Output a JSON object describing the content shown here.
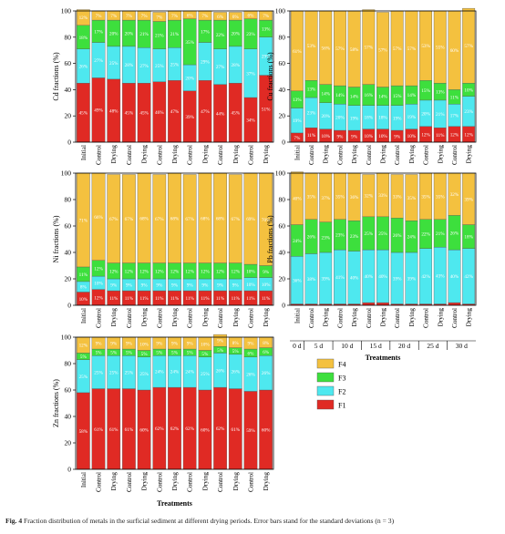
{
  "chart_data": [
    {
      "type": "bar",
      "stacked": true,
      "ylabel": "Cd fractions (%)",
      "ylim": [
        0,
        100
      ],
      "yticks": [
        0,
        20,
        40,
        60,
        80,
        100
      ],
      "categories": [
        "Initial",
        "Control",
        "Drying",
        "Control",
        "Drying",
        "Control",
        "Drying",
        "Control",
        "Drying",
        "Control",
        "Drying",
        "Control",
        "Drying"
      ],
      "series": [
        {
          "name": "F1",
          "values": [
            45,
            49,
            48,
            45,
            45,
            46,
            47,
            39,
            47,
            44,
            45,
            34,
            51
          ],
          "labels": [
            "45%",
            "49%",
            "48%",
            "45%",
            "45%",
            "46%",
            "47%",
            "39%",
            "47%",
            "44%",
            "45%",
            "34%",
            "51%"
          ]
        },
        {
          "name": "F2",
          "values": [
            26,
            27,
            25,
            28,
            27,
            25,
            25,
            20,
            29,
            27,
            28,
            37,
            29
          ],
          "labels": [
            "26%",
            "27%",
            "25%",
            "28%",
            "27%",
            "25%",
            "25%",
            "20%",
            "29%",
            "27%",
            "28%",
            "37%",
            "29%"
          ]
        },
        {
          "name": "F3",
          "values": [
            18,
            17,
            20,
            20,
            21,
            21,
            21,
            35,
            17,
            22,
            20,
            23,
            13
          ],
          "labels": [
            "18%",
            "17%",
            "20%",
            "20%",
            "21%",
            "21%",
            "21%",
            "35%",
            "17%",
            "22%",
            "20%",
            "23%",
            "13%"
          ]
        },
        {
          "name": "F4",
          "values": [
            12,
            7,
            7,
            7,
            7,
            7,
            7,
            6,
            7,
            6,
            6,
            6,
            7
          ],
          "labels": [
            "12%",
            "7%",
            "7%",
            "7%",
            "7%",
            "7%",
            "7%",
            "6%",
            "7%",
            "6%",
            "6%",
            "6%",
            "7%"
          ]
        }
      ]
    },
    {
      "type": "bar",
      "stacked": true,
      "ylabel": "Cu fractions (%)",
      "ylim": [
        0,
        100
      ],
      "yticks": [
        0,
        20,
        40,
        60,
        80,
        100
      ],
      "categories": [
        "Initial",
        "Control",
        "Drying",
        "Control",
        "Drying",
        "Control",
        "Drying",
        "Control",
        "Drying",
        "Control",
        "Drying",
        "Control",
        "Drying"
      ],
      "series": [
        {
          "name": "F1",
          "values": [
            7,
            11,
            10,
            9,
            9,
            10,
            10,
            9,
            10,
            12,
            11,
            12,
            12
          ],
          "labels": [
            "7%",
            "11%",
            "10%",
            "9%",
            "9%",
            "10%",
            "10%",
            "9%",
            "10%",
            "12%",
            "11%",
            "12%",
            "12%"
          ]
        },
        {
          "name": "F2",
          "values": [
            19,
            23,
            20,
            20,
            19,
            18,
            18,
            19,
            19,
            20,
            21,
            17,
            23
          ],
          "labels": [
            "19%",
            "23%",
            "20%",
            "20%",
            "19%",
            "18%",
            "18%",
            "19%",
            "19%",
            "20%",
            "21%",
            "17%",
            "23%"
          ]
        },
        {
          "name": "F3",
          "values": [
            13,
            13,
            14,
            14,
            14,
            16,
            14,
            15,
            14,
            15,
            13,
            11,
            10
          ],
          "labels": [
            "13%",
            "13%",
            "14%",
            "14%",
            "14%",
            "16%",
            "14%",
            "15%",
            "14%",
            "15%",
            "13%",
            "11%",
            "10%"
          ]
        },
        {
          "name": "F4",
          "values": [
            61,
            53,
            56,
            57,
            58,
            57,
            57,
            57,
            57,
            53,
            55,
            60,
            57
          ],
          "labels": [
            "61%",
            "53%",
            "56%",
            "57%",
            "58%",
            "57%",
            "57%",
            "57%",
            "57%",
            "53%",
            "55%",
            "60%",
            "57%"
          ]
        }
      ]
    },
    {
      "type": "bar",
      "stacked": true,
      "ylabel": "Ni fractions (%)",
      "ylim": [
        0,
        100
      ],
      "yticks": [
        0,
        20,
        40,
        60,
        80,
        100
      ],
      "categories": [
        "Initial",
        "Control",
        "Drying",
        "Control",
        "Drying",
        "Control",
        "Drying",
        "Control",
        "Drying",
        "Control",
        "Drying",
        "Control",
        "Drying"
      ],
      "series": [
        {
          "name": "F1",
          "values": [
            10,
            12,
            11,
            11,
            11,
            11,
            11,
            11,
            11,
            11,
            11,
            11,
            11
          ],
          "labels": [
            "10%",
            "12%",
            "11%",
            "11%",
            "11%",
            "11%",
            "11%",
            "11%",
            "11%",
            "11%",
            "11%",
            "11%",
            "11%"
          ]
        },
        {
          "name": "F2",
          "values": [
            8,
            10,
            9,
            9,
            9,
            9,
            9,
            9,
            9,
            9,
            9,
            10,
            10
          ],
          "labels": [
            "8%",
            "10%",
            "9%",
            "9%",
            "9%",
            "9%",
            "9%",
            "9%",
            "9%",
            "9%",
            "9%",
            "10%",
            "10%"
          ]
        },
        {
          "name": "F3",
          "values": [
            11,
            12,
            12,
            12,
            12,
            12,
            12,
            12,
            12,
            12,
            12,
            10,
            9
          ],
          "labels": [
            "11%",
            "12%",
            "12%",
            "12%",
            "12%",
            "12%",
            "12%",
            "12%",
            "12%",
            "12%",
            "12%",
            "10%",
            "9%"
          ]
        },
        {
          "name": "F4",
          "values": [
            71,
            66,
            67,
            67,
            68,
            67,
            68,
            67,
            68,
            68,
            67,
            69,
            70
          ],
          "labels": [
            "71%",
            "66%",
            "67%",
            "67%",
            "68%",
            "67%",
            "68%",
            "67%",
            "68%",
            "68%",
            "67%",
            "69%",
            "70%"
          ]
        }
      ]
    },
    {
      "type": "bar",
      "stacked": true,
      "ylabel": "Pb fractions (%)",
      "xlabel": "Treatments",
      "ylim": [
        0,
        100
      ],
      "yticks": [
        0,
        20,
        40,
        60,
        80,
        100
      ],
      "categories": [
        "Initial",
        "Control",
        "Drying",
        "Control",
        "Drying",
        "Control",
        "Drying",
        "Control",
        "Drying",
        "Control",
        "Drying",
        "Control",
        "Drying"
      ],
      "groups": [
        {
          "label": "0 d",
          "span": 1
        },
        {
          "label": "5 d",
          "span": 2
        },
        {
          "label": "10 d",
          "span": 2
        },
        {
          "label": "15 d",
          "span": 2
        },
        {
          "label": "20 d",
          "span": 2
        },
        {
          "label": "25 d",
          "span": 2
        },
        {
          "label": "30 d",
          "span": 2
        }
      ],
      "series": [
        {
          "name": "F1",
          "values": [
            1,
            1,
            1,
            1,
            1,
            2,
            2,
            1,
            1,
            1,
            1,
            2,
            1
          ],
          "labels": [
            "",
            "",
            "",
            "",
            "",
            "",
            "",
            "",
            "",
            "",
            "",
            "",
            ""
          ]
        },
        {
          "name": "F2",
          "values": [
            36,
            38,
            39,
            41,
            40,
            40,
            40,
            39,
            39,
            42,
            43,
            40,
            42
          ],
          "labels": [
            "36%",
            "38%",
            "39%",
            "41%",
            "40%",
            "40%",
            "40%",
            "39%",
            "39%",
            "42%",
            "43%",
            "40%",
            "42%"
          ]
        },
        {
          "name": "F3",
          "values": [
            24,
            26,
            23,
            23,
            23,
            25,
            25,
            26,
            24,
            22,
            21,
            26,
            18
          ],
          "labels": [
            "24%",
            "26%",
            "23%",
            "23%",
            "23%",
            "25%",
            "25%",
            "26%",
            "24%",
            "22%",
            "21%",
            "26%",
            "18%"
          ]
        },
        {
          "name": "F4",
          "values": [
            40,
            35,
            37,
            35,
            36,
            32,
            33,
            33,
            35,
            35,
            35,
            32,
            39
          ],
          "labels": [
            "40%",
            "35%",
            "37%",
            "35%",
            "36%",
            "32%",
            "33%",
            "33%",
            "35%",
            "35%",
            "35%",
            "32%",
            "39%"
          ]
        }
      ]
    },
    {
      "type": "bar",
      "stacked": true,
      "ylabel": "Zn fractions (%)",
      "xlabel": "Treatments",
      "ylim": [
        0,
        100
      ],
      "yticks": [
        0,
        20,
        40,
        60,
        80,
        100
      ],
      "categories": [
        "Initial",
        "Control",
        "Drying",
        "Control",
        "Drying",
        "Control",
        "Drying",
        "Control",
        "Drying",
        "Control",
        "Drying",
        "Control",
        "Drying"
      ],
      "series": [
        {
          "name": "F1",
          "values": [
            58,
            61,
            61,
            61,
            60,
            62,
            62,
            62,
            60,
            62,
            61,
            59,
            60
          ],
          "labels": [
            "58%",
            "61%",
            "61%",
            "61%",
            "60%",
            "62%",
            "62%",
            "62%",
            "60%",
            "62%",
            "61%",
            "59%",
            "60%"
          ]
        },
        {
          "name": "F2",
          "values": [
            25,
            25,
            25,
            25,
            25,
            24,
            24,
            24,
            25,
            26,
            26,
            26,
            26
          ],
          "labels": [
            "25%",
            "25%",
            "25%",
            "25%",
            "25%",
            "24%",
            "24%",
            "24%",
            "25%",
            "26%",
            "26%",
            "26%",
            "26%"
          ]
        },
        {
          "name": "F3",
          "values": [
            5,
            5,
            5,
            5,
            5,
            5,
            5,
            5,
            5,
            5,
            5,
            6,
            6
          ],
          "labels": [
            "5%",
            "5%",
            "5%",
            "5%",
            "5%",
            "5%",
            "5%",
            "5%",
            "5%",
            "5%",
            "5%",
            "6%",
            "6%"
          ]
        },
        {
          "name": "F4",
          "values": [
            12,
            9,
            9,
            9,
            10,
            9,
            9,
            9,
            10,
            9,
            8,
            9,
            8
          ],
          "labels": [
            "12%",
            "9%",
            "9%",
            "9%",
            "10%",
            "9%",
            "9%",
            "9%",
            "10%",
            "9%",
            "8%",
            "9%",
            "8%"
          ]
        }
      ]
    }
  ],
  "legend": {
    "entries": [
      {
        "name": "F4",
        "color": "#f4c13f"
      },
      {
        "name": "F3",
        "color": "#3ddf3d"
      },
      {
        "name": "F2",
        "color": "#4ee8ef"
      },
      {
        "name": "F1",
        "color": "#e02a24"
      }
    ]
  },
  "colors": {
    "F1": "#e02a24",
    "F2": "#4ee8ef",
    "F3": "#3ddf3d",
    "F4": "#f4c13f"
  },
  "caption": {
    "label": "Fig. 4",
    "text": "Fraction distribution of metals in the surficial sediment at different drying periods. Error bars stand for the standard deviations (n = 3)"
  }
}
